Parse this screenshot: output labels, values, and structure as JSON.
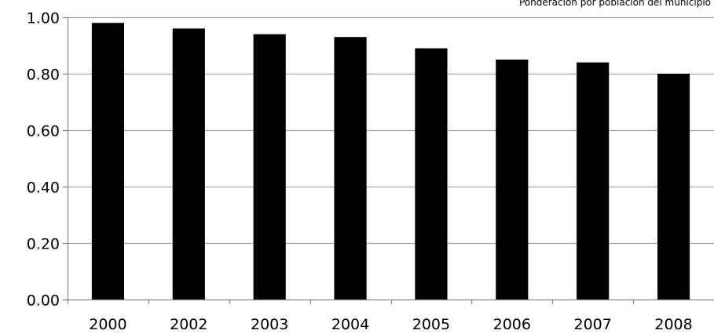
{
  "chart_data": {
    "type": "bar",
    "title": "",
    "annotation": "Ponderación por población del municipio",
    "xlabel": "",
    "ylabel": "",
    "categories": [
      "2000",
      "2002",
      "2003",
      "2004",
      "2005",
      "2006",
      "2007",
      "2008"
    ],
    "values": [
      0.98,
      0.96,
      0.94,
      0.93,
      0.89,
      0.85,
      0.84,
      0.8
    ],
    "ylim": [
      0,
      1.0
    ],
    "yticks": [
      0.0,
      0.2,
      0.4,
      0.6,
      0.8,
      1.0
    ],
    "ytick_labels": [
      "0.00",
      "0.20",
      "0.40",
      "0.60",
      "0.80",
      "1.00"
    ],
    "grid": true,
    "legend": "none",
    "bar_color": "#000000",
    "grid_color": "#a6a6a6",
    "axis_color": "#868686"
  }
}
